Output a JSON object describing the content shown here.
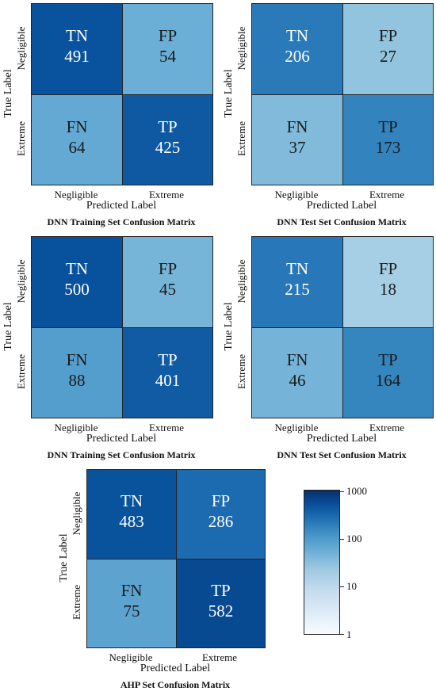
{
  "matrices": [
    {
      "caption": "DNN Training Set Confusion Matrix",
      "ylabel": "True Label",
      "xlabel": "Predicted Label",
      "row_labels": [
        "Negligible",
        "Extreme"
      ],
      "col_labels": [
        "Negligible",
        "Extreme"
      ],
      "cells": [
        {
          "code": "TN",
          "count": "491",
          "value": 491
        },
        {
          "code": "FP",
          "count": "54",
          "value": 54
        },
        {
          "code": "FN",
          "count": "64",
          "value": 64
        },
        {
          "code": "TP",
          "count": "425",
          "value": 425
        }
      ]
    },
    {
      "caption": "DNN Test Set Confusion Matrix",
      "ylabel": "True Label",
      "xlabel": "Predicted Label",
      "row_labels": [
        "Negligible",
        "Extreme"
      ],
      "col_labels": [
        "Negligible",
        "Extreme"
      ],
      "cells": [
        {
          "code": "TN",
          "count": "206",
          "value": 206
        },
        {
          "code": "FP",
          "count": "27",
          "value": 27
        },
        {
          "code": "FN",
          "count": "37",
          "value": 37
        },
        {
          "code": "TP",
          "count": "173",
          "value": 173
        }
      ]
    },
    {
      "caption": "DNN Training Set Confusion Matrix",
      "ylabel": "True Label",
      "xlabel": "Predicted Label",
      "row_labels": [
        "Negligible",
        "Extreme"
      ],
      "col_labels": [
        "Negligible",
        "Extreme"
      ],
      "cells": [
        {
          "code": "TN",
          "count": "500",
          "value": 500
        },
        {
          "code": "FP",
          "count": "45",
          "value": 45
        },
        {
          "code": "FN",
          "count": "88",
          "value": 88
        },
        {
          "code": "TP",
          "count": "401",
          "value": 401
        }
      ]
    },
    {
      "caption": "DNN Test Set Confusion Matrix",
      "ylabel": "True Label",
      "xlabel": "Predicted Label",
      "row_labels": [
        "Negligible",
        "Extreme"
      ],
      "col_labels": [
        "Negligible",
        "Extreme"
      ],
      "cells": [
        {
          "code": "TN",
          "count": "215",
          "value": 215
        },
        {
          "code": "FP",
          "count": "18",
          "value": 18
        },
        {
          "code": "FN",
          "count": "46",
          "value": 46
        },
        {
          "code": "TP",
          "count": "164",
          "value": 164
        }
      ]
    },
    {
      "caption": "AHP Set Confusion Matrix",
      "ylabel": "True Label",
      "xlabel": "Predicted Label",
      "row_labels": [
        "Negligible",
        "Extreme"
      ],
      "col_labels": [
        "Negligible",
        "Extreme"
      ],
      "cells": [
        {
          "code": "TN",
          "count": "483",
          "value": 483
        },
        {
          "code": "FP",
          "count": "286",
          "value": 286
        },
        {
          "code": "FN",
          "count": "75",
          "value": 75
        },
        {
          "code": "TP",
          "count": "582",
          "value": 582
        }
      ]
    }
  ],
  "colorbar": {
    "scale": "log",
    "range": [
      1,
      1000
    ],
    "ticks": [
      "1000",
      "100",
      "10",
      "1"
    ],
    "colors": [
      "#f7fbff",
      "#08306b"
    ]
  },
  "chart_data": [
    {
      "type": "heatmap",
      "title": "DNN Training Set Confusion Matrix",
      "xlabel": "Predicted Label",
      "ylabel": "True Label",
      "x": [
        "Negligible",
        "Extreme"
      ],
      "y": [
        "Negligible",
        "Extreme"
      ],
      "values": [
        [
          491,
          54
        ],
        [
          64,
          425
        ]
      ],
      "scale": "log",
      "range": [
        1,
        1000
      ]
    },
    {
      "type": "heatmap",
      "title": "DNN Test Set Confusion Matrix",
      "xlabel": "Predicted Label",
      "ylabel": "True Label",
      "x": [
        "Negligible",
        "Extreme"
      ],
      "y": [
        "Negligible",
        "Extreme"
      ],
      "values": [
        [
          206,
          27
        ],
        [
          37,
          173
        ]
      ],
      "scale": "log",
      "range": [
        1,
        1000
      ]
    },
    {
      "type": "heatmap",
      "title": "DNN Training Set Confusion Matrix",
      "xlabel": "Predicted Label",
      "ylabel": "True Label",
      "x": [
        "Negligible",
        "Extreme"
      ],
      "y": [
        "Negligible",
        "Extreme"
      ],
      "values": [
        [
          500,
          45
        ],
        [
          88,
          401
        ]
      ],
      "scale": "log",
      "range": [
        1,
        1000
      ]
    },
    {
      "type": "heatmap",
      "title": "DNN Test Set Confusion Matrix",
      "xlabel": "Predicted Label",
      "ylabel": "True Label",
      "x": [
        "Negligible",
        "Extreme"
      ],
      "y": [
        "Negligible",
        "Extreme"
      ],
      "values": [
        [
          215,
          18
        ],
        [
          46,
          164
        ]
      ],
      "scale": "log",
      "range": [
        1,
        1000
      ]
    },
    {
      "type": "heatmap",
      "title": "AHP Set Confusion Matrix",
      "xlabel": "Predicted Label",
      "ylabel": "True Label",
      "x": [
        "Negligible",
        "Extreme"
      ],
      "y": [
        "Negligible",
        "Extreme"
      ],
      "values": [
        [
          483,
          286
        ],
        [
          75,
          582
        ]
      ],
      "scale": "log",
      "range": [
        1,
        1000
      ]
    }
  ]
}
